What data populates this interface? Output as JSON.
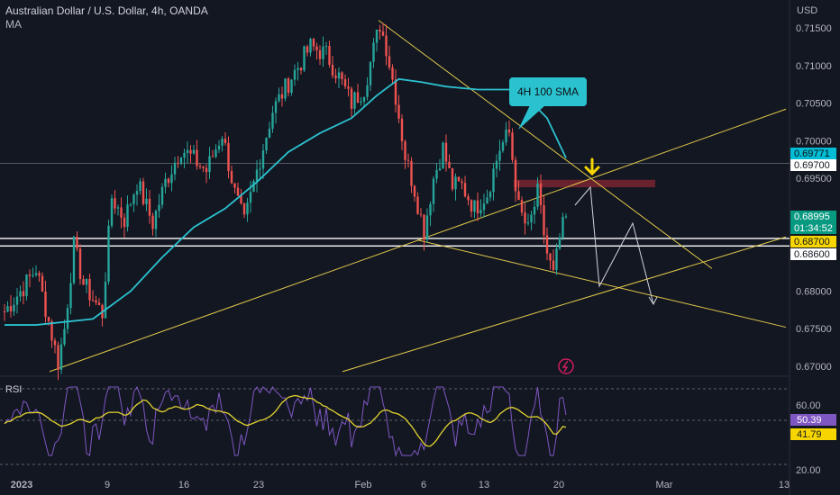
{
  "header": {
    "title": "Australian Dollar / U.S. Dollar, 4h, OANDA",
    "indicator": "MA"
  },
  "currency": "USD",
  "colors": {
    "background": "#131722",
    "up": "#26a69a",
    "down": "#ef5350",
    "sma": "#2bc2cf",
    "trend": "#e0c84a",
    "rsi": "#7e57c2",
    "rsi_ma": "#e3d42f",
    "resistance_zone": "#7a2430"
  },
  "chart_data": [
    {
      "type": "candlestick",
      "title": "Australian Dollar / U.S. Dollar, 4h, OANDA",
      "ylim": [
        0.669,
        0.718
      ],
      "y_ticks": [
        "0.71500",
        "0.71000",
        "0.70500",
        "0.70000",
        "0.69500",
        "0.69000",
        "0.68500",
        "0.68000",
        "0.67500",
        "0.67000"
      ],
      "x_ticks": [
        "2023",
        "9",
        "16",
        "23",
        "Feb",
        "6",
        "13",
        "20",
        "Mar",
        "13"
      ],
      "price_labels": [
        {
          "value": "0.69771",
          "style": "sma"
        },
        {
          "value": "0.69700",
          "style": "plain"
        },
        {
          "value": "0.68995",
          "style": "last"
        },
        {
          "value": "01:34:52",
          "style": "last"
        },
        {
          "value": "0.68700",
          "style": "yellow"
        },
        {
          "value": "0.68600",
          "style": "plain"
        }
      ],
      "horizontal_levels": [
        0.697,
        0.687,
        0.686
      ],
      "resistance_zone": [
        0.6938,
        0.6948
      ],
      "annotation": "4H 100 SMA",
      "series_summary": {
        "start": 0.6773,
        "low_jan": 0.6695,
        "high_feb2": 0.7157,
        "low_feb6": 0.6873,
        "high_feb14": 0.703,
        "low_feb17": 0.6813,
        "last": 0.68995,
        "sma_last": 0.69771
      }
    },
    {
      "type": "line",
      "title": "RSI",
      "y_ticks": [
        "60.00",
        "20.00"
      ],
      "series": [
        {
          "name": "RSI",
          "last": "50.39"
        },
        {
          "name": "RSI MA",
          "last": "41.79"
        }
      ]
    }
  ]
}
